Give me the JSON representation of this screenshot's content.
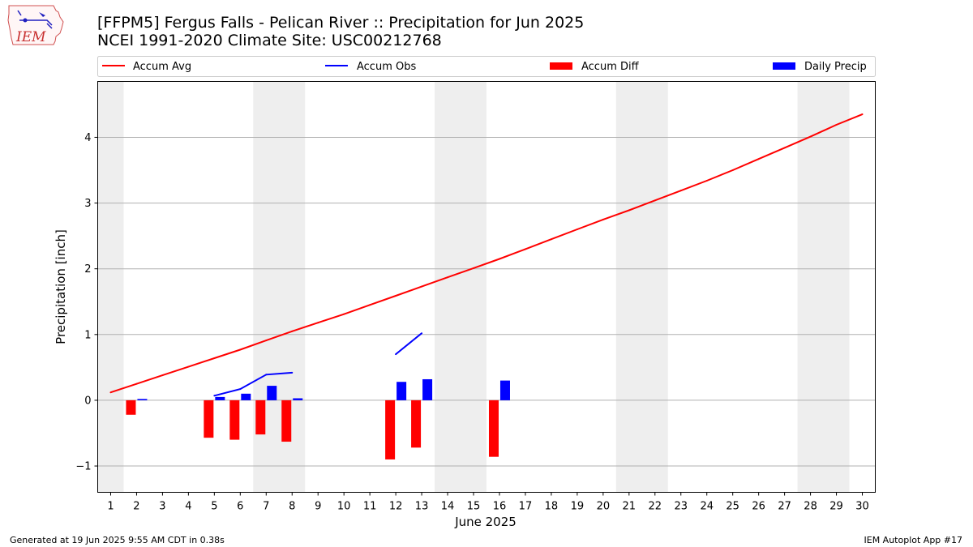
{
  "titles": {
    "line1": "[FFPM5] Fergus Falls - Pelican River :: Precipitation for Jun 2025",
    "line2": "NCEI 1991-2020 Climate Site: USC00212768"
  },
  "logo": {
    "text": "IEM",
    "icon": "iowa-state-map-icon"
  },
  "footer": {
    "left": "Generated at 19 Jun 2025 9:55 AM CDT in 0.38s",
    "right": "IEM Autoplot App #17"
  },
  "colors": {
    "accum_avg": "#ff0000",
    "accum_obs": "#0000ff",
    "accum_diff": "#ff0000",
    "daily_precip": "#0000ff",
    "weekend_shade": "#eeeeee",
    "grid": "#b0b0b0"
  },
  "chart_data": {
    "type": "bar",
    "xlabel": "June 2025",
    "ylabel": "Precipitation [inch]",
    "xlim": [
      0.5,
      30.5
    ],
    "ylim": [
      -1.4,
      4.85
    ],
    "x_ticks": [
      1,
      2,
      3,
      4,
      5,
      6,
      7,
      8,
      9,
      10,
      11,
      12,
      13,
      14,
      15,
      16,
      17,
      18,
      19,
      20,
      21,
      22,
      23,
      24,
      25,
      26,
      27,
      28,
      29,
      30
    ],
    "y_ticks": [
      -1,
      0,
      1,
      2,
      3,
      4
    ],
    "y_tick_labels": [
      "−1",
      "0",
      "1",
      "2",
      "3",
      "4"
    ],
    "grid": "horizontal",
    "legend_position": "top",
    "weekend_shading": [
      [
        0.5,
        1.5
      ],
      [
        6.5,
        8.5
      ],
      [
        13.5,
        15.5
      ],
      [
        20.5,
        22.5
      ],
      [
        27.5,
        29.5
      ]
    ],
    "series": [
      {
        "name": "Accum Avg",
        "type": "line",
        "days": [
          1,
          2,
          3,
          4,
          5,
          6,
          7,
          8,
          9,
          10,
          11,
          12,
          13,
          14,
          15,
          16,
          17,
          18,
          19,
          20,
          21,
          22,
          23,
          24,
          25,
          26,
          27,
          28,
          29,
          30
        ],
        "values": [
          0.12,
          0.25,
          0.38,
          0.51,
          0.64,
          0.77,
          0.91,
          1.05,
          1.18,
          1.31,
          1.45,
          1.59,
          1.73,
          1.87,
          2.01,
          2.15,
          2.3,
          2.45,
          2.6,
          2.75,
          2.89,
          3.04,
          3.19,
          3.34,
          3.5,
          3.67,
          3.84,
          4.01,
          4.19,
          4.35
        ]
      },
      {
        "name": "Accum Obs",
        "type": "line",
        "segments": [
          {
            "days": [
              5,
              6,
              7,
              8
            ],
            "values": [
              0.07,
              0.17,
              0.39,
              0.42
            ]
          },
          {
            "days": [
              12,
              13
            ],
            "values": [
              0.7,
              1.02
            ]
          }
        ]
      },
      {
        "name": "Accum Diff",
        "type": "bar",
        "days": [
          2,
          5,
          6,
          7,
          8,
          12,
          13,
          16
        ],
        "values": [
          -0.22,
          -0.57,
          -0.6,
          -0.52,
          -0.63,
          -0.9,
          -0.72,
          -0.86
        ]
      },
      {
        "name": "Daily Precip",
        "type": "bar",
        "days": [
          2,
          5,
          6,
          7,
          8,
          12,
          13,
          16
        ],
        "values": [
          0.02,
          0.05,
          0.1,
          0.22,
          0.03,
          0.28,
          0.32,
          0.3
        ]
      }
    ]
  }
}
